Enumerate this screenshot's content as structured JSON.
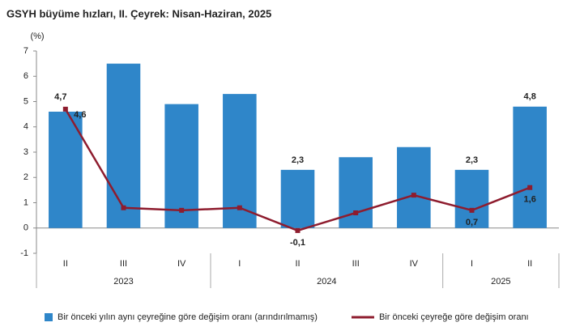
{
  "chart_data": {
    "type": "bar",
    "title": "GSYH büyüme hızları, II. Çeyrek: Nisan-Haziran, 2025",
    "y_unit": "(%)",
    "categories": [
      "II",
      "III",
      "IV",
      "I",
      "II",
      "III",
      "IV",
      "I",
      "II"
    ],
    "x_groups": [
      {
        "label": "2023",
        "count": 3
      },
      {
        "label": "2024",
        "count": 4
      },
      {
        "label": "2025",
        "count": 2
      }
    ],
    "series": [
      {
        "name": "Bir önceki yılın aynı çeyreğine göre değişim oranı (arındırılmamış)",
        "type": "bar",
        "color": "#2f86c9",
        "values": [
          4.6,
          6.5,
          4.9,
          5.3,
          2.3,
          2.8,
          3.2,
          2.3,
          4.8
        ],
        "value_labels": [
          "4,6",
          null,
          null,
          null,
          "2,3",
          null,
          null,
          "2,3",
          "4,8"
        ]
      },
      {
        "name": "Bir önceki çeyreğe göre değişim oranı",
        "type": "line",
        "color": "#8e1c2e",
        "values": [
          4.7,
          0.8,
          0.7,
          0.8,
          -0.1,
          0.6,
          1.3,
          0.7,
          1.6
        ],
        "value_labels": [
          "4,7",
          null,
          null,
          null,
          "-0,1",
          null,
          null,
          "0,7",
          "1,6"
        ]
      }
    ],
    "ylim": [
      -1,
      7
    ],
    "yticks": [
      -1,
      0,
      1,
      2,
      3,
      4,
      5,
      6,
      7
    ],
    "grid": false
  }
}
